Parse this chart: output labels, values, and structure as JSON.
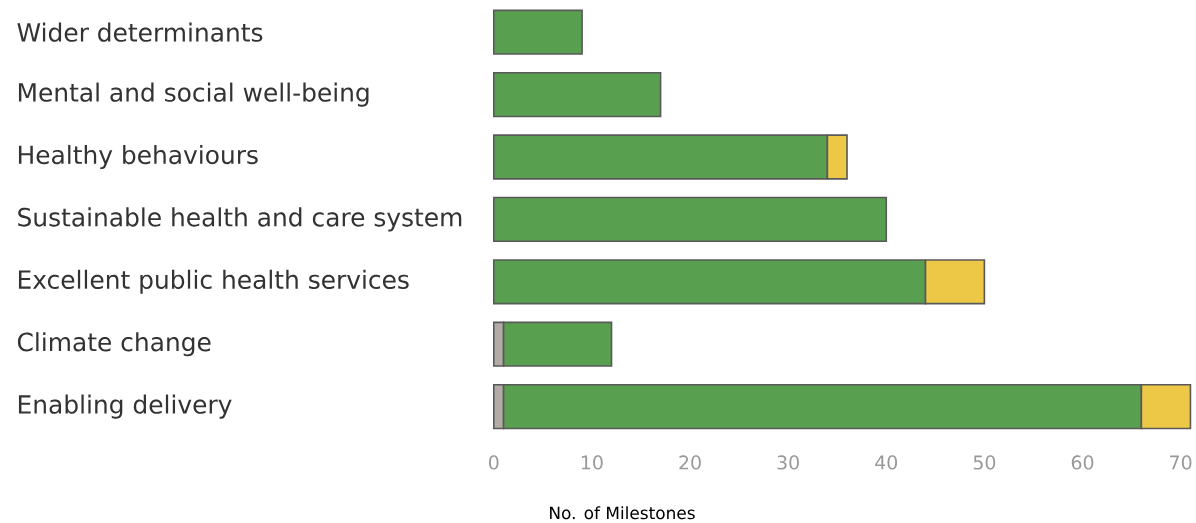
{
  "chart_data": {
    "type": "bar",
    "orientation": "horizontal",
    "stacked": true,
    "categories": [
      "Wider determinants",
      "Mental and social well-being",
      "Healthy behaviours",
      "Sustainable health and care system",
      "Excellent public health services",
      "Climate change",
      "Enabling delivery"
    ],
    "series": [
      {
        "color": "#b3aba6",
        "values": [
          null,
          null,
          null,
          null,
          null,
          1,
          1
        ]
      },
      {
        "color": "#58a04f",
        "values": [
          9,
          17,
          34,
          40,
          44,
          11,
          65
        ]
      },
      {
        "color": "#ecc846",
        "values": [
          null,
          null,
          2,
          null,
          6,
          null,
          5
        ]
      }
    ],
    "xlim": [
      0,
      71
    ],
    "xticks": [
      0,
      10,
      20,
      30,
      40,
      50,
      60,
      70
    ],
    "xlabel": "No. of Milestones"
  }
}
